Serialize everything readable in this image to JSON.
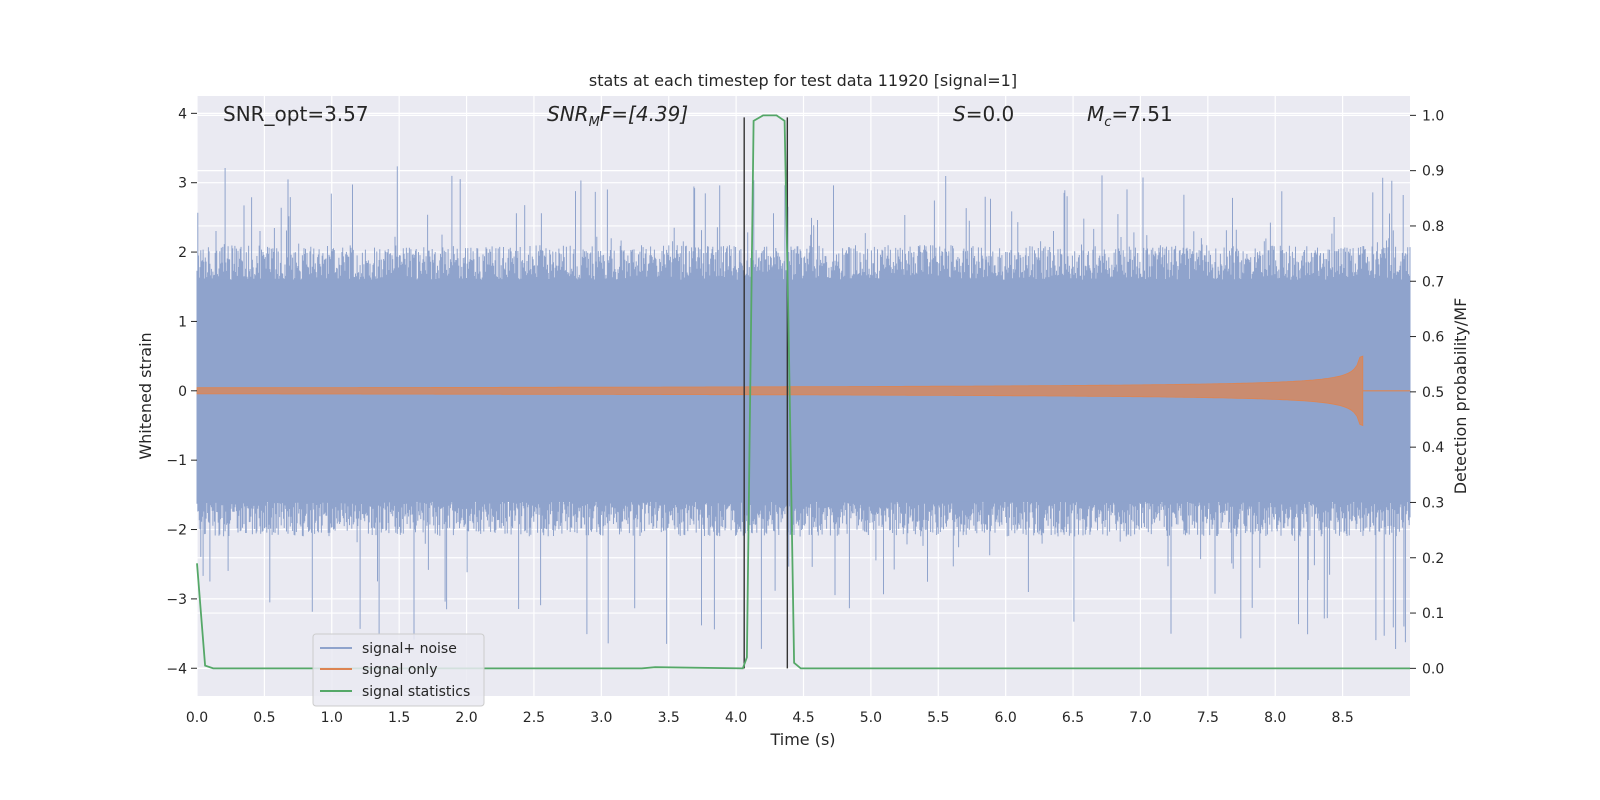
{
  "chart_data": {
    "type": "line",
    "title": "stats at each timestep for test data 11920 [signal=1]",
    "xlabel": "Time (s)",
    "ylabel_left": "Whitened strain",
    "ylabel_right": "Detection probability/MF",
    "xlim": [
      0.0,
      9.0
    ],
    "ylim_left": [
      -4.4,
      4.25
    ],
    "ylim_right": [
      -0.05,
      1.035
    ],
    "x_ticks": [
      "0.0",
      "0.5",
      "1.0",
      "1.5",
      "2.0",
      "2.5",
      "3.0",
      "3.5",
      "4.0",
      "4.5",
      "5.0",
      "5.5",
      "6.0",
      "6.5",
      "7.0",
      "7.5",
      "8.0",
      "8.5"
    ],
    "y_ticks_left": [
      "4",
      "3",
      "2",
      "1",
      "0",
      "−1",
      "−2",
      "−3",
      "−4"
    ],
    "y_ticks_right": [
      "1.0",
      "0.9",
      "0.8",
      "0.7",
      "0.6",
      "0.5",
      "0.4",
      "0.3",
      "0.2",
      "0.1",
      "0.0"
    ],
    "grid": true,
    "legend_position": "lower-left",
    "annotations": {
      "snr_opt": "SNR_opt=3.57",
      "snr_mf_a": "SNR",
      "snr_mf_sub": "M",
      "snr_mf_b": "F=[4.39]",
      "s_italic": "S",
      "s_value": "=0.0",
      "mc_italic": "M",
      "mc_sub": "c",
      "mc_value": "=7.51"
    },
    "series": [
      {
        "name": "signal+ noise",
        "color": "#8fa3cc",
        "description_level": "whitened strain noise band",
        "envelope_typical": [
          -1.6,
          1.6
        ],
        "extremes_upper_max": 3.2,
        "extremes_lower_min": -4.0
      },
      {
        "name": "signal only",
        "color": "#dd8452",
        "chirp_end_time": 8.65,
        "chirp_peak_amplitude": 0.5
      },
      {
        "name": "signal statistics",
        "color": "#55a868",
        "x": [
          0.0,
          0.06,
          0.12,
          3.3,
          3.4,
          4.05,
          4.08,
          4.13,
          4.2,
          4.3,
          4.36,
          4.39,
          4.43,
          4.48,
          9.0
        ],
        "y": [
          0.19,
          0.005,
          0.0,
          0.0,
          0.002,
          0.0,
          0.02,
          0.99,
          1.0,
          1.0,
          0.99,
          0.6,
          0.01,
          0.0,
          0.0
        ]
      }
    ],
    "vertical_markers": [
      4.06,
      4.38
    ]
  }
}
